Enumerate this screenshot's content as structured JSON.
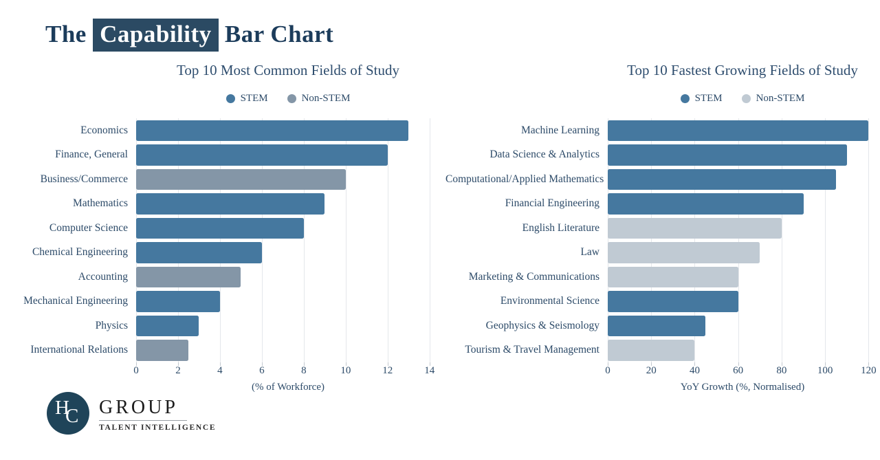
{
  "page": {
    "title_prefix": "The",
    "title_highlight": "Capability",
    "title_suffix": "Bar Chart"
  },
  "colors": {
    "title_text": "#1C3C5B",
    "highlight_bg": "#2B4A63",
    "stem": "#45789F",
    "non_stem_common": "#8496A7",
    "non_stem_growing": "#C0CAD3",
    "label_text": "#2C4A68",
    "gridline": "#E4E7EB"
  },
  "logo": {
    "monogram_h": "H",
    "monogram_c": "C",
    "group": "GROUP",
    "tagline": "TALENT INTELLIGENCE"
  },
  "chart_data": [
    {
      "type": "bar",
      "orientation": "horizontal",
      "title": "Top 10 Most Common Fields of Study",
      "xlabel": "(% of Workforce)",
      "xlim": [
        0,
        14.5
      ],
      "xticks": [
        0,
        2,
        4,
        6,
        8,
        10,
        12,
        14
      ],
      "grid": true,
      "legend_position": "top",
      "legend": [
        "STEM",
        "Non-STEM"
      ],
      "colors": {
        "STEM": "#45789F",
        "Non-STEM": "#8496A7"
      },
      "categories": [
        "Economics",
        "Finance, General",
        "Business/Commerce",
        "Mathematics",
        "Computer Science",
        "Chemical Engineering",
        "Accounting",
        "Mechanical Engineering",
        "Physics",
        "International Relations"
      ],
      "values": [
        13,
        12,
        10,
        9,
        8,
        6,
        5,
        4,
        3,
        2.5
      ],
      "groups": [
        "STEM",
        "STEM",
        "Non-STEM",
        "STEM",
        "STEM",
        "STEM",
        "Non-STEM",
        "STEM",
        "STEM",
        "Non-STEM"
      ]
    },
    {
      "type": "bar",
      "orientation": "horizontal",
      "title": "Top 10 Fastest Growing Fields of Study",
      "xlabel": "YoY Growth (%, Normalised)",
      "xlim": [
        0,
        124
      ],
      "xticks": [
        0,
        20,
        40,
        60,
        80,
        100,
        120
      ],
      "grid": true,
      "legend_position": "top",
      "legend": [
        "STEM",
        "Non-STEM"
      ],
      "colors": {
        "STEM": "#45789F",
        "Non-STEM": "#C0CAD3"
      },
      "categories": [
        "Machine Learning",
        "Data Science & Analytics",
        "Computational/Applied Mathematics",
        "Financial Engineering",
        "English Literature",
        "Law",
        "Marketing & Communications",
        "Environmental Science",
        "Geophysics & Seismology",
        "Tourism & Travel Management"
      ],
      "values": [
        120,
        110,
        105,
        90,
        80,
        70,
        60,
        60,
        45,
        40
      ],
      "groups": [
        "STEM",
        "STEM",
        "STEM",
        "STEM",
        "Non-STEM",
        "Non-STEM",
        "Non-STEM",
        "STEM",
        "STEM",
        "Non-STEM"
      ]
    }
  ]
}
